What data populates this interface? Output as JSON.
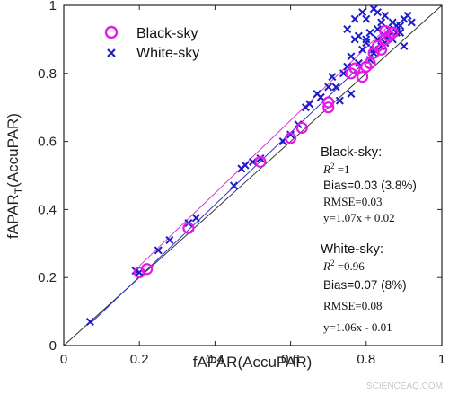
{
  "chart_data": {
    "type": "scatter",
    "xlabel": "fAPAR(AccuPAR)",
    "ylabel_main": "fAPAR",
    "ylabel_sub": "T",
    "ylabel_tail": "(AccuPAR)",
    "xlim": [
      0,
      1
    ],
    "ylim": [
      0,
      1
    ],
    "x_ticks": [
      0,
      0.2,
      0.4,
      0.6,
      0.8,
      1
    ],
    "y_ticks": [
      0,
      0.2,
      0.4,
      0.6,
      0.8,
      1
    ],
    "x_tick_labels": [
      "0",
      "0.2",
      "0.4",
      "0.6",
      "0.8",
      "1"
    ],
    "y_tick_labels": [
      "0",
      "0.2",
      "0.4",
      "0.6",
      "0.8",
      "1"
    ],
    "grid": false,
    "legend_position": "top-left",
    "one_to_one_line": true,
    "series": [
      {
        "name": "Black-sky",
        "marker": "circle",
        "color": "#e619e6",
        "fit": {
          "slope": 1.07,
          "intercept": 0.02,
          "x_range": [
            0.2,
            0.87
          ]
        },
        "x": [
          0.2,
          0.22,
          0.33,
          0.52,
          0.6,
          0.63,
          0.7,
          0.7,
          0.76,
          0.77,
          0.79,
          0.8,
          0.81,
          0.82,
          0.84,
          0.85,
          0.86,
          0.87,
          0.83,
          0.85
        ],
        "y": [
          0.215,
          0.225,
          0.345,
          0.54,
          0.61,
          0.64,
          0.7,
          0.715,
          0.8,
          0.815,
          0.79,
          0.82,
          0.83,
          0.86,
          0.87,
          0.9,
          0.91,
          0.92,
          0.88,
          0.925
        ]
      },
      {
        "name": "White-sky",
        "marker": "x",
        "color": "#1c1cc8",
        "fit": {
          "slope": 1.06,
          "intercept": -0.01,
          "x_range": [
            0.07,
            0.87
          ]
        },
        "x": [
          0.07,
          0.19,
          0.2,
          0.25,
          0.28,
          0.33,
          0.35,
          0.45,
          0.47,
          0.48,
          0.5,
          0.52,
          0.58,
          0.6,
          0.62,
          0.64,
          0.65,
          0.67,
          0.68,
          0.7,
          0.72,
          0.74,
          0.75,
          0.76,
          0.78,
          0.79,
          0.8,
          0.81,
          0.82,
          0.83,
          0.84,
          0.85,
          0.86,
          0.87,
          0.88,
          0.89,
          0.9,
          0.91,
          0.92,
          0.77,
          0.79,
          0.8,
          0.81,
          0.82,
          0.83,
          0.84,
          0.85,
          0.86,
          0.87,
          0.88,
          0.89,
          0.9,
          0.75,
          0.77,
          0.8,
          0.82,
          0.85,
          0.78,
          0.83,
          0.71,
          0.73,
          0.76
        ],
        "y": [
          0.07,
          0.22,
          0.215,
          0.28,
          0.31,
          0.36,
          0.375,
          0.47,
          0.52,
          0.53,
          0.54,
          0.55,
          0.6,
          0.62,
          0.65,
          0.7,
          0.71,
          0.74,
          0.73,
          0.76,
          0.76,
          0.8,
          0.82,
          0.85,
          0.83,
          0.87,
          0.89,
          0.84,
          0.86,
          0.9,
          0.88,
          0.91,
          0.93,
          0.95,
          0.92,
          0.94,
          0.96,
          0.97,
          0.95,
          0.96,
          0.98,
          0.9,
          0.92,
          0.87,
          0.93,
          0.95,
          0.97,
          0.91,
          0.9,
          0.94,
          0.92,
          0.88,
          0.93,
          0.9,
          0.96,
          0.99,
          0.89,
          0.91,
          0.98,
          0.79,
          0.72,
          0.74
        ]
      }
    ],
    "annotations": {
      "black": {
        "title": "Black-sky:",
        "r2_label": "R",
        "r2_exp": "2",
        "r2_value": " =1",
        "bias": "Bias=0.03 (3.8%)",
        "rmse": "RMSE=0.03",
        "eq": "y=1.07x + 0.02"
      },
      "white": {
        "title": "White-sky:",
        "r2_label": "R",
        "r2_exp": "2",
        "r2_value": " =0.96",
        "bias": "Bias=0.07 (8%)",
        "rmse": "RMSE=0.08",
        "eq": "y=1.06x - 0.01"
      }
    }
  },
  "watermark": "SCIENCEAQ.COM"
}
